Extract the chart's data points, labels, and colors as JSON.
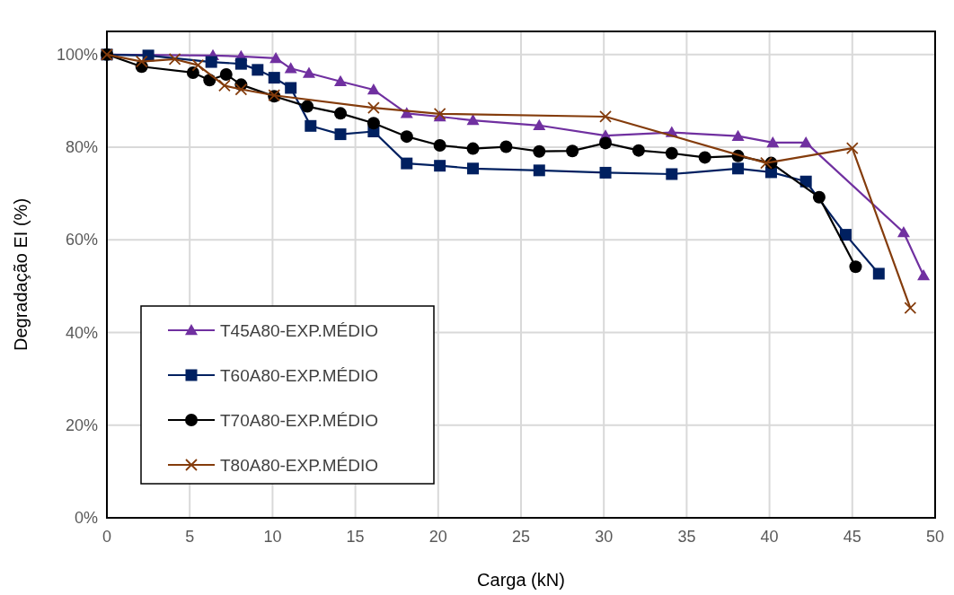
{
  "chart_data": {
    "type": "line",
    "xlabel": "Carga (kN)",
    "ylabel": "Degradação EI (%)",
    "xlim": [
      0,
      50
    ],
    "xticks": [
      0,
      5,
      10,
      15,
      20,
      25,
      30,
      35,
      40,
      45,
      50
    ],
    "ylim": [
      0,
      105
    ],
    "yticks": [
      {
        "value": 0,
        "label": "0%"
      },
      {
        "value": 20,
        "label": "20%"
      },
      {
        "value": 40,
        "label": "40%"
      },
      {
        "value": 60,
        "label": "60%"
      },
      {
        "value": 80,
        "label": "80%"
      },
      {
        "value": 100,
        "label": "100%"
      }
    ],
    "grid": true,
    "legend": "bottom left",
    "series": [
      {
        "name": "T45A80-EXP.MÉDIO",
        "color": "#7030a0",
        "marker": "triangle",
        "x": [
          0,
          6.4,
          8.1,
          10.2,
          11.1,
          12.2,
          14.1,
          16.1,
          18.1,
          20.1,
          22.1,
          26.1,
          30.1,
          34.1,
          38.1,
          40.2,
          42.2,
          48.1,
          49.3
        ],
        "values": [
          100,
          99.8,
          99.6,
          99.2,
          97,
          96,
          94.2,
          92.4,
          87.3,
          86.6,
          85.8,
          84.7,
          82.5,
          83.2,
          82.4,
          81,
          81,
          61.6,
          52.3
        ]
      },
      {
        "name": "T60A80-EXP.MÉDIO",
        "color": "#002060",
        "marker": "square",
        "x": [
          0,
          2.5,
          6.3,
          8.1,
          9.1,
          10.1,
          11.1,
          12.3,
          14.1,
          16.1,
          18.1,
          20.1,
          22.1,
          26.1,
          30.1,
          34.1,
          38.1,
          40.1,
          42.2,
          44.6,
          46.6
        ],
        "values": [
          100,
          99.8,
          98.4,
          98,
          96.7,
          95,
          92.8,
          84.6,
          82.8,
          83.4,
          76.5,
          76,
          75.4,
          75,
          74.5,
          74.2,
          75.4,
          74.6,
          72.6,
          61.1,
          52.7
        ]
      },
      {
        "name": "T70A80-EXP.MÉDIO",
        "color": "#000000",
        "marker": "circle",
        "x": [
          0,
          2.1,
          5.2,
          6.2,
          7.2,
          8.1,
          10.1,
          12.1,
          14.1,
          16.1,
          18.1,
          20.1,
          22.1,
          24.1,
          26.1,
          28.1,
          30.1,
          32.1,
          34.1,
          36.1,
          38.1,
          40.1,
          43,
          45.2
        ],
        "values": [
          100,
          97.4,
          96.1,
          94.5,
          95.7,
          93.5,
          91,
          88.8,
          87.3,
          85.2,
          82.3,
          80.4,
          79.7,
          80.1,
          79.1,
          79.2,
          80.9,
          79.3,
          78.7,
          77.8,
          78.1,
          76.6,
          69.2,
          54.2
        ]
      },
      {
        "name": "T80A80-EXP.MÉDIO",
        "color": "#843c0c",
        "marker": "cross",
        "x": [
          0,
          2.1,
          4.1,
          5.5,
          7.1,
          8.1,
          10.1,
          16.1,
          20.1,
          30.1,
          39.8,
          45,
          48.5
        ],
        "values": [
          100,
          98.5,
          99,
          97.7,
          93.3,
          92.5,
          91.2,
          88.5,
          87.2,
          86.6,
          76.6,
          79.8,
          45.3
        ]
      }
    ]
  }
}
